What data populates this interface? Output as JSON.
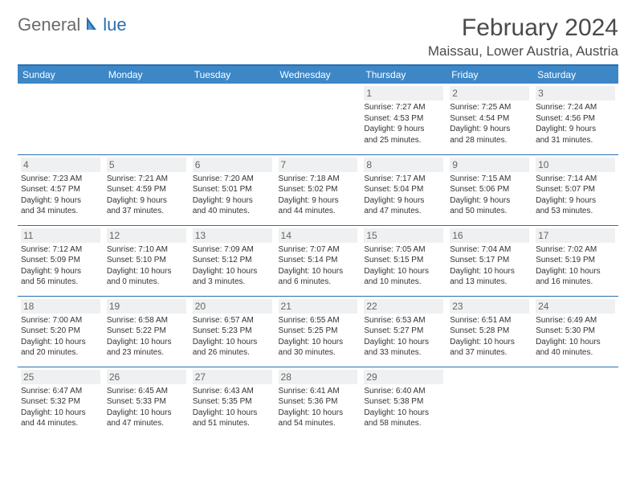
{
  "logo": {
    "text1": "General",
    "text2": "lue"
  },
  "title": "February 2024",
  "location": "Maissau, Lower Austria, Austria",
  "colors": {
    "header_bg": "#3d87c7",
    "accent": "#2b6fb0",
    "daynum_bg": "#eef0f1",
    "text": "#333333",
    "logo_gray": "#6b6b6b"
  },
  "days_of_week": [
    "Sunday",
    "Monday",
    "Tuesday",
    "Wednesday",
    "Thursday",
    "Friday",
    "Saturday"
  ],
  "weeks": [
    [
      null,
      null,
      null,
      null,
      {
        "n": "1",
        "sr": "Sunrise: 7:27 AM",
        "ss": "Sunset: 4:53 PM",
        "d1": "Daylight: 9 hours",
        "d2": "and 25 minutes."
      },
      {
        "n": "2",
        "sr": "Sunrise: 7:25 AM",
        "ss": "Sunset: 4:54 PM",
        "d1": "Daylight: 9 hours",
        "d2": "and 28 minutes."
      },
      {
        "n": "3",
        "sr": "Sunrise: 7:24 AM",
        "ss": "Sunset: 4:56 PM",
        "d1": "Daylight: 9 hours",
        "d2": "and 31 minutes."
      }
    ],
    [
      {
        "n": "4",
        "sr": "Sunrise: 7:23 AM",
        "ss": "Sunset: 4:57 PM",
        "d1": "Daylight: 9 hours",
        "d2": "and 34 minutes."
      },
      {
        "n": "5",
        "sr": "Sunrise: 7:21 AM",
        "ss": "Sunset: 4:59 PM",
        "d1": "Daylight: 9 hours",
        "d2": "and 37 minutes."
      },
      {
        "n": "6",
        "sr": "Sunrise: 7:20 AM",
        "ss": "Sunset: 5:01 PM",
        "d1": "Daylight: 9 hours",
        "d2": "and 40 minutes."
      },
      {
        "n": "7",
        "sr": "Sunrise: 7:18 AM",
        "ss": "Sunset: 5:02 PM",
        "d1": "Daylight: 9 hours",
        "d2": "and 44 minutes."
      },
      {
        "n": "8",
        "sr": "Sunrise: 7:17 AM",
        "ss": "Sunset: 5:04 PM",
        "d1": "Daylight: 9 hours",
        "d2": "and 47 minutes."
      },
      {
        "n": "9",
        "sr": "Sunrise: 7:15 AM",
        "ss": "Sunset: 5:06 PM",
        "d1": "Daylight: 9 hours",
        "d2": "and 50 minutes."
      },
      {
        "n": "10",
        "sr": "Sunrise: 7:14 AM",
        "ss": "Sunset: 5:07 PM",
        "d1": "Daylight: 9 hours",
        "d2": "and 53 minutes."
      }
    ],
    [
      {
        "n": "11",
        "sr": "Sunrise: 7:12 AM",
        "ss": "Sunset: 5:09 PM",
        "d1": "Daylight: 9 hours",
        "d2": "and 56 minutes."
      },
      {
        "n": "12",
        "sr": "Sunrise: 7:10 AM",
        "ss": "Sunset: 5:10 PM",
        "d1": "Daylight: 10 hours",
        "d2": "and 0 minutes."
      },
      {
        "n": "13",
        "sr": "Sunrise: 7:09 AM",
        "ss": "Sunset: 5:12 PM",
        "d1": "Daylight: 10 hours",
        "d2": "and 3 minutes."
      },
      {
        "n": "14",
        "sr": "Sunrise: 7:07 AM",
        "ss": "Sunset: 5:14 PM",
        "d1": "Daylight: 10 hours",
        "d2": "and 6 minutes."
      },
      {
        "n": "15",
        "sr": "Sunrise: 7:05 AM",
        "ss": "Sunset: 5:15 PM",
        "d1": "Daylight: 10 hours",
        "d2": "and 10 minutes."
      },
      {
        "n": "16",
        "sr": "Sunrise: 7:04 AM",
        "ss": "Sunset: 5:17 PM",
        "d1": "Daylight: 10 hours",
        "d2": "and 13 minutes."
      },
      {
        "n": "17",
        "sr": "Sunrise: 7:02 AM",
        "ss": "Sunset: 5:19 PM",
        "d1": "Daylight: 10 hours",
        "d2": "and 16 minutes."
      }
    ],
    [
      {
        "n": "18",
        "sr": "Sunrise: 7:00 AM",
        "ss": "Sunset: 5:20 PM",
        "d1": "Daylight: 10 hours",
        "d2": "and 20 minutes."
      },
      {
        "n": "19",
        "sr": "Sunrise: 6:58 AM",
        "ss": "Sunset: 5:22 PM",
        "d1": "Daylight: 10 hours",
        "d2": "and 23 minutes."
      },
      {
        "n": "20",
        "sr": "Sunrise: 6:57 AM",
        "ss": "Sunset: 5:23 PM",
        "d1": "Daylight: 10 hours",
        "d2": "and 26 minutes."
      },
      {
        "n": "21",
        "sr": "Sunrise: 6:55 AM",
        "ss": "Sunset: 5:25 PM",
        "d1": "Daylight: 10 hours",
        "d2": "and 30 minutes."
      },
      {
        "n": "22",
        "sr": "Sunrise: 6:53 AM",
        "ss": "Sunset: 5:27 PM",
        "d1": "Daylight: 10 hours",
        "d2": "and 33 minutes."
      },
      {
        "n": "23",
        "sr": "Sunrise: 6:51 AM",
        "ss": "Sunset: 5:28 PM",
        "d1": "Daylight: 10 hours",
        "d2": "and 37 minutes."
      },
      {
        "n": "24",
        "sr": "Sunrise: 6:49 AM",
        "ss": "Sunset: 5:30 PM",
        "d1": "Daylight: 10 hours",
        "d2": "and 40 minutes."
      }
    ],
    [
      {
        "n": "25",
        "sr": "Sunrise: 6:47 AM",
        "ss": "Sunset: 5:32 PM",
        "d1": "Daylight: 10 hours",
        "d2": "and 44 minutes."
      },
      {
        "n": "26",
        "sr": "Sunrise: 6:45 AM",
        "ss": "Sunset: 5:33 PM",
        "d1": "Daylight: 10 hours",
        "d2": "and 47 minutes."
      },
      {
        "n": "27",
        "sr": "Sunrise: 6:43 AM",
        "ss": "Sunset: 5:35 PM",
        "d1": "Daylight: 10 hours",
        "d2": "and 51 minutes."
      },
      {
        "n": "28",
        "sr": "Sunrise: 6:41 AM",
        "ss": "Sunset: 5:36 PM",
        "d1": "Daylight: 10 hours",
        "d2": "and 54 minutes."
      },
      {
        "n": "29",
        "sr": "Sunrise: 6:40 AM",
        "ss": "Sunset: 5:38 PM",
        "d1": "Daylight: 10 hours",
        "d2": "and 58 minutes."
      },
      null,
      null
    ]
  ]
}
